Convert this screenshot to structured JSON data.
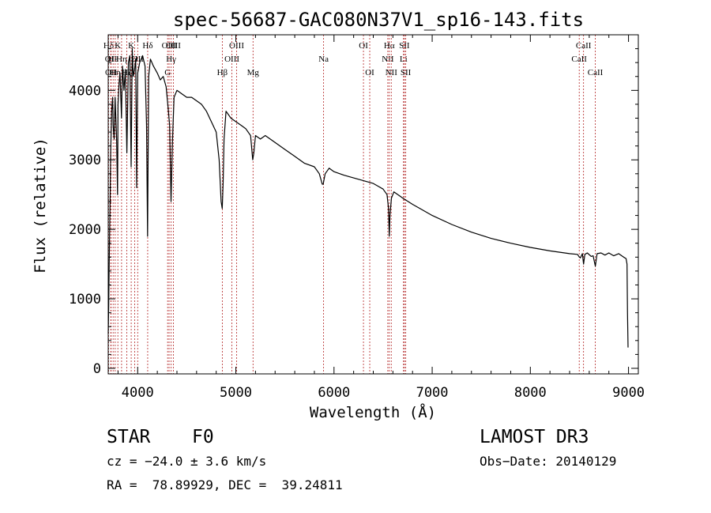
{
  "chart_data": {
    "type": "line",
    "title": "spec-56687-GAC080N37V1_sp16-143.fits",
    "xlabel": "Wavelength (Å)",
    "ylabel": "Flux (relative)",
    "xlim": [
      3700,
      9100
    ],
    "ylim": [
      -80,
      4800
    ],
    "x_ticks": [
      4000,
      5000,
      6000,
      7000,
      8000,
      9000
    ],
    "y_ticks": [
      0,
      1000,
      2000,
      3000,
      4000
    ],
    "grid": false,
    "series": [
      {
        "name": "Flux",
        "x": [
          3700,
          3705,
          3710,
          3720,
          3725,
          3735,
          3745,
          3750,
          3760,
          3770,
          3775,
          3785,
          3795,
          3800,
          3810,
          3820,
          3835,
          3845,
          3860,
          3875,
          3890,
          3905,
          3920,
          3933,
          3945,
          3955,
          3968,
          3980,
          3990,
          4000,
          4020,
          4050,
          4075,
          4090,
          4101,
          4112,
          4130,
          4160,
          4200,
          4230,
          4260,
          4290,
          4310,
          4325,
          4340,
          4355,
          4370,
          4400,
          4450,
          4500,
          4550,
          4600,
          4650,
          4700,
          4750,
          4800,
          4830,
          4850,
          4861,
          4870,
          4880,
          4900,
          4950,
          5000,
          5050,
          5100,
          5150,
          5172,
          5183,
          5200,
          5250,
          5300,
          5350,
          5400,
          5500,
          5600,
          5700,
          5800,
          5850,
          5880,
          5890,
          5896,
          5910,
          5950,
          6000,
          6100,
          6200,
          6300,
          6400,
          6450,
          6500,
          6540,
          6555,
          6563,
          6570,
          6585,
          6610,
          6700,
          6800,
          6900,
          7000,
          7200,
          7400,
          7600,
          7800,
          8000,
          8200,
          8400,
          8480,
          8500,
          8510,
          8530,
          8542,
          8555,
          8580,
          8620,
          8640,
          8662,
          8680,
          8720,
          8760,
          8800,
          8850,
          8900,
          8950,
          8975,
          8985,
          8990,
          8995
        ],
        "values": [
          500,
          900,
          1500,
          2500,
          3100,
          3700,
          3900,
          3500,
          3300,
          3900,
          3700,
          3300,
          2500,
          3800,
          4100,
          4250,
          3600,
          4350,
          4000,
          4300,
          3100,
          4400,
          4500,
          2900,
          4600,
          4200,
          4300,
          4450,
          2600,
          4250,
          4400,
          4500,
          4350,
          3500,
          1900,
          4200,
          4450,
          4350,
          4250,
          4150,
          4200,
          4050,
          3750,
          3500,
          2400,
          3300,
          3900,
          4000,
          3950,
          3900,
          3900,
          3850,
          3800,
          3700,
          3550,
          3400,
          3000,
          2400,
          2300,
          2650,
          3300,
          3700,
          3600,
          3550,
          3500,
          3450,
          3350,
          3000,
          3100,
          3350,
          3300,
          3350,
          3300,
          3250,
          3150,
          3050,
          2950,
          2900,
          2800,
          2650,
          2650,
          2700,
          2800,
          2880,
          2830,
          2780,
          2740,
          2700,
          2660,
          2620,
          2580,
          2500,
          2300,
          1900,
          2200,
          2450,
          2540,
          2450,
          2360,
          2280,
          2200,
          2070,
          1960,
          1870,
          1800,
          1740,
          1690,
          1650,
          1640,
          1600,
          1590,
          1650,
          1500,
          1640,
          1660,
          1610,
          1620,
          1470,
          1650,
          1660,
          1630,
          1660,
          1620,
          1650,
          1600,
          1580,
          1500,
          800,
          300
        ]
      }
    ],
    "lines": [
      {
        "label": "Hδ",
        "x": 3704,
        "row": 1
      },
      {
        "label": "OII",
        "x": 3727,
        "row": 2
      },
      {
        "label": "OII",
        "x": 3729,
        "row": 3
      },
      {
        "label": "Hε",
        "x": 3750,
        "row": 2
      },
      {
        "label": "Hη",
        "x": 3771,
        "row": 3
      },
      {
        "label": "K",
        "x": 3798,
        "row": 1
      },
      {
        "label": "Hη",
        "x": 3836,
        "row": 2
      },
      {
        "label": "Hζ",
        "x": 3889,
        "row": 3
      },
      {
        "label": "K",
        "x": 3934,
        "row": 1
      },
      {
        "label": "H",
        "x": 3969,
        "row": 2
      },
      {
        "label": "Hδ",
        "x": 4102,
        "row": 1
      },
      {
        "label": "OII",
        "x": 4000,
        "row": 2
      },
      {
        "label": "G",
        "x": 4305,
        "row": 3
      },
      {
        "label": "OIII",
        "x": 4320,
        "row": 1
      },
      {
        "label": "Hγ",
        "x": 4341,
        "row": 2
      },
      {
        "label": "OIII",
        "x": 4364,
        "row": 1
      },
      {
        "label": "Hβ",
        "x": 4862,
        "row": 3
      },
      {
        "label": "OIII",
        "x": 4960,
        "row": 2
      },
      {
        "label": "OIII",
        "x": 5008,
        "row": 1
      },
      {
        "label": "Mg",
        "x": 5175,
        "row": 3
      },
      {
        "label": "Na",
        "x": 5894,
        "row": 2
      },
      {
        "label": "OI",
        "x": 6300,
        "row": 1
      },
      {
        "label": "OI",
        "x": 6364,
        "row": 3
      },
      {
        "label": "NII",
        "x": 6548,
        "row": 2
      },
      {
        "label": "Hα",
        "x": 6563,
        "row": 1
      },
      {
        "label": "NII",
        "x": 6583,
        "row": 3
      },
      {
        "label": "Li",
        "x": 6708,
        "row": 2
      },
      {
        "label": "SII",
        "x": 6717,
        "row": 1
      },
      {
        "label": "SII",
        "x": 6731,
        "row": 3
      },
      {
        "label": "CaII",
        "x": 8498,
        "row": 2
      },
      {
        "label": "CaII",
        "x": 8542,
        "row": 1
      },
      {
        "label": "CaII",
        "x": 8662,
        "row": 3
      }
    ]
  },
  "info": {
    "class_label": "STAR",
    "subclass": "F0",
    "survey": "LAMOST DR3",
    "redshift": "cz = −24.0 ± 3.6 km/s",
    "obs_date": "Obs−Date: 20140129",
    "coords": "RA =  78.89929, DEC =  39.24811"
  },
  "colors": {
    "axes": "#000000",
    "spectrum": "#000000",
    "line_markers": "#b22222",
    "background": "#ffffff"
  }
}
